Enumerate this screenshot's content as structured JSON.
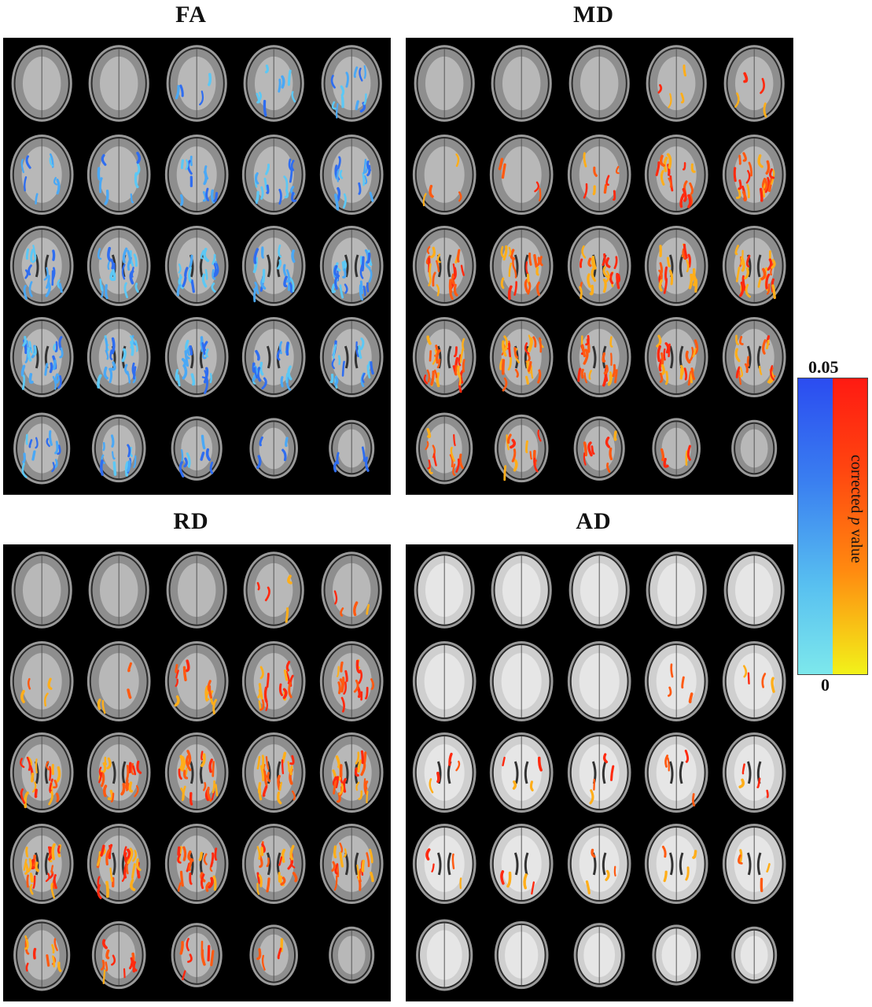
{
  "panels": [
    {
      "key": "fa",
      "title": "FA",
      "overlay": "blue"
    },
    {
      "key": "md",
      "title": "MD",
      "overlay": "red"
    },
    {
      "key": "rd",
      "title": "RD",
      "overlay": "red"
    },
    {
      "key": "ad",
      "title": "AD",
      "overlay": "red"
    }
  ],
  "grid": {
    "rows": 5,
    "cols": 5
  },
  "overlay_levels": {
    "fa": [
      [
        0,
        0,
        1,
        2,
        3
      ],
      [
        2,
        2,
        3,
        4,
        4
      ],
      [
        4,
        5,
        5,
        5,
        6
      ],
      [
        6,
        5,
        5,
        4,
        4
      ],
      [
        3,
        3,
        2,
        1,
        1
      ]
    ],
    "md": [
      [
        0,
        0,
        0,
        1,
        1
      ],
      [
        1,
        1,
        2,
        4,
        5
      ],
      [
        5,
        5,
        5,
        5,
        6
      ],
      [
        6,
        6,
        5,
        5,
        4
      ],
      [
        3,
        3,
        2,
        1,
        0
      ]
    ],
    "rd": [
      [
        0,
        0,
        0,
        1,
        1
      ],
      [
        1,
        1,
        3,
        4,
        4
      ],
      [
        5,
        5,
        5,
        5,
        6
      ],
      [
        6,
        6,
        5,
        5,
        4
      ],
      [
        3,
        3,
        2,
        1,
        0
      ]
    ],
    "ad": [
      [
        0,
        0,
        0,
        0,
        0
      ],
      [
        0,
        0,
        0,
        1,
        1
      ],
      [
        1,
        1,
        1,
        1,
        1
      ],
      [
        1,
        1,
        1,
        1,
        1
      ],
      [
        0,
        0,
        0,
        0,
        0
      ]
    ]
  },
  "colorbar": {
    "top_label": "0.05",
    "bottom_label": "0",
    "axis_label_pre": "corrected ",
    "axis_label_italic": "p",
    "axis_label_post": " value",
    "colors": {
      "blue_top": "#2b4cf0",
      "blue_bottom": "#7de8ec",
      "red_top": "#ff1a12",
      "red_bottom": "#f2f21a"
    }
  }
}
